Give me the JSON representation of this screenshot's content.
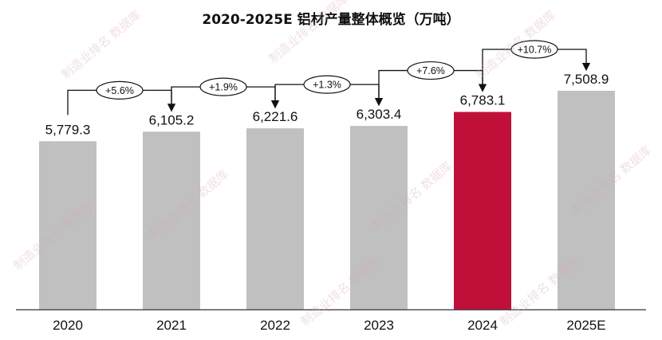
{
  "chart_data": {
    "type": "bar",
    "title": "2020-2025E 铝材产量整体概览（万吨）",
    "categories": [
      "2020",
      "2021",
      "2022",
      "2023",
      "2024",
      "2025E"
    ],
    "values": [
      5779.3,
      6105.2,
      6221.6,
      6303.4,
      6783.1,
      7508.9
    ],
    "value_labels": [
      "5,779.3",
      "6,105.2",
      "6,221.6",
      "6,303.4",
      "6,783.1",
      "7,508.9"
    ],
    "growth_labels": [
      "+5.6%",
      "+1.9%",
      "+1.3%",
      "+7.6%",
      "+10.7%"
    ],
    "xlabel": "",
    "ylabel": "",
    "highlight_index": 4,
    "colors": {
      "bar": "#c0c0c0",
      "highlight": "#c0103a",
      "text": "#111111",
      "axis": "#333333"
    },
    "grid": false,
    "legend": "none"
  },
  "watermark": "制造业排名 数据库"
}
